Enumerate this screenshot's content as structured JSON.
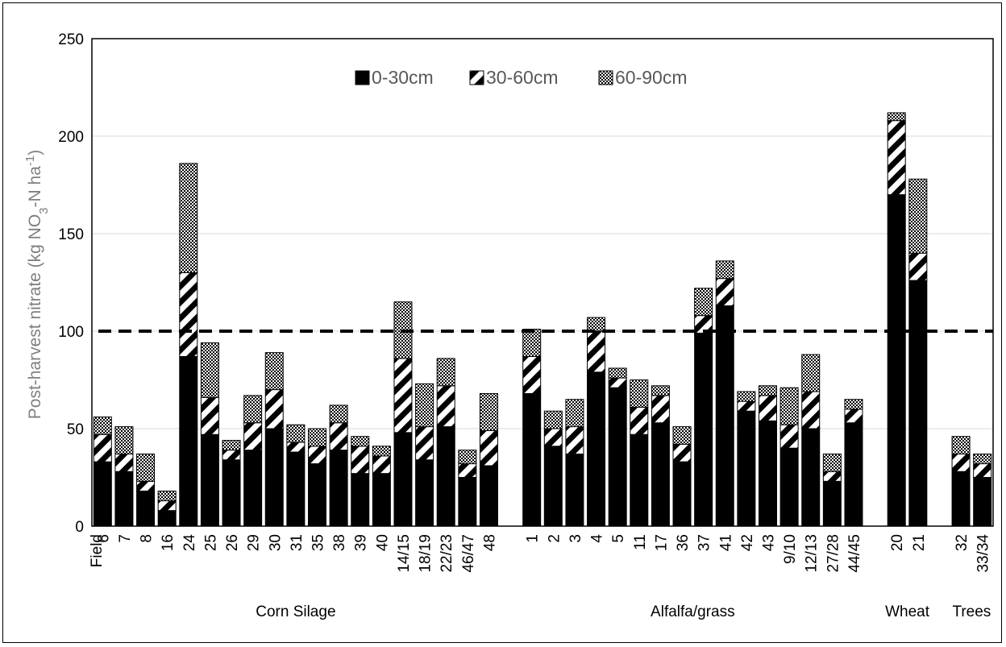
{
  "colors": {
    "dark": "#000000",
    "grid": "#d9d9d9",
    "axis_label": "#7f7f7f",
    "legend_text": "#595959"
  },
  "chart_data": {
    "type": "bar",
    "stacked": true,
    "ylabel_main": "Post-harvest nitrate (kg NO",
    "ylabel_sub1": "3",
    "ylabel_mid": "-N ha",
    "ylabel_sup": "-1",
    "ylabel_end": ")",
    "ylim": [
      0,
      250
    ],
    "yticks": [
      0,
      50,
      100,
      150,
      200,
      250
    ],
    "grid": true,
    "legend_position": "top-center",
    "reference_line": 100,
    "first_tick_label": "Field",
    "categories": [
      "6",
      "7",
      "8",
      "16",
      "24",
      "25",
      "26",
      "29",
      "30",
      "31",
      "35",
      "38",
      "39",
      "40",
      "14/15",
      "18/19",
      "22/23",
      "46/47",
      "48",
      "",
      "1",
      "2",
      "3",
      "4",
      "5",
      "11",
      "17",
      "36",
      "37",
      "41",
      "42",
      "43",
      "9/10",
      "12/13",
      "27/28",
      "44/45",
      "",
      "20",
      "21",
      "",
      "32",
      "33/34"
    ],
    "series": [
      {
        "name": "0-30cm",
        "pattern": "solid",
        "values": [
          33,
          28,
          18,
          8,
          87,
          47,
          34,
          39,
          50,
          38,
          32,
          39,
          27,
          27,
          48,
          34,
          51,
          25,
          31,
          null,
          68,
          41,
          37,
          79,
          71,
          47,
          53,
          33,
          99,
          113,
          59,
          54,
          40,
          50,
          23,
          53,
          null,
          170,
          126,
          null,
          28,
          25
        ]
      },
      {
        "name": "30-60cm",
        "pattern": "diagonal",
        "values": [
          14,
          9,
          5,
          5,
          43,
          19,
          5,
          14,
          20,
          5,
          9,
          14,
          14,
          9,
          38,
          17,
          21,
          7,
          18,
          null,
          19,
          9,
          14,
          21,
          5,
          14,
          14,
          9,
          9,
          14,
          5,
          13,
          12,
          19,
          5,
          7,
          null,
          38,
          14,
          null,
          9,
          7
        ]
      },
      {
        "name": "60-90cm",
        "pattern": "checker",
        "values": [
          9,
          14,
          14,
          5,
          56,
          28,
          5,
          14,
          19,
          9,
          9,
          9,
          5,
          5,
          29,
          22,
          14,
          7,
          19,
          null,
          14,
          9,
          14,
          7,
          5,
          14,
          5,
          9,
          14,
          9,
          5,
          5,
          19,
          19,
          9,
          5,
          null,
          4,
          38,
          null,
          9,
          5
        ]
      }
    ],
    "groups": [
      {
        "label": "Corn Silage",
        "from": 0,
        "to": 18
      },
      {
        "label": "Alfalfa/grass",
        "from": 20,
        "to": 35
      },
      {
        "label": "Wheat",
        "from": 37,
        "to": 38
      },
      {
        "label": "Trees",
        "from": 40,
        "to": 41
      }
    ]
  }
}
